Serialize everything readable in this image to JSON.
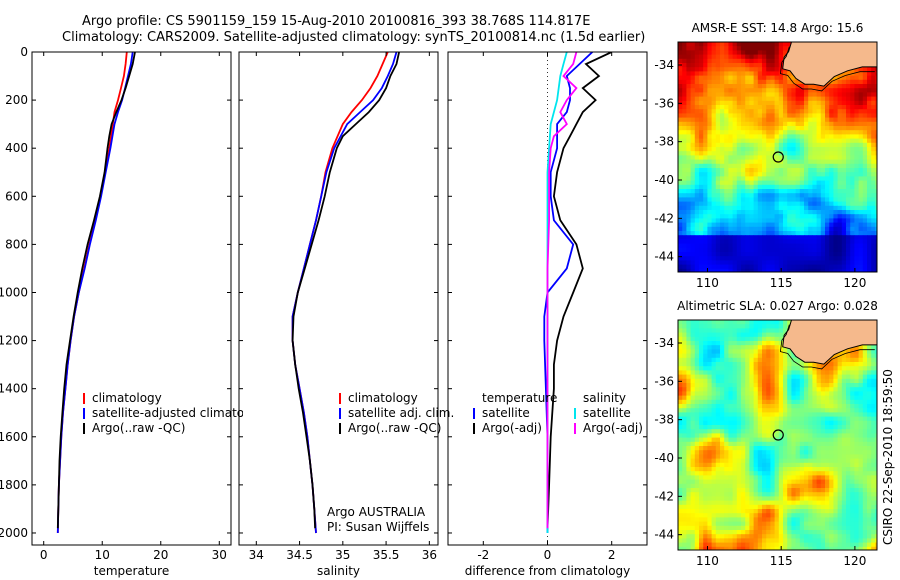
{
  "title_line1": "Argo profile: CS 5901159_159 15-Aug-2010 20100816_393 38.768S 114.817E",
  "title_line2": "Climatology: CARS2009. Satellite-adjusted climatology: synTS_20100814.nc (1.5d earlier)",
  "side_label": "CSIRO 22-Sep-2010 18:59:50",
  "colors": {
    "climatology": "#ff0000",
    "satellite": "#0000ff",
    "argo": "#000000",
    "sal_satellite": "#00e5ee",
    "sal_argo": "#ff00ff",
    "land": "#f5b98c",
    "marker": "#000000"
  },
  "chart_data": [
    {
      "type": "line",
      "xlabel": "temperature",
      "xlim": [
        -2,
        32
      ],
      "ylim": [
        0,
        2050
      ],
      "y_reversed": true,
      "xticks": [
        0,
        10,
        20,
        30
      ],
      "yticks": [
        0,
        200,
        400,
        600,
        800,
        1000,
        1200,
        1400,
        1600,
        1800,
        2000
      ],
      "legend": [
        "climatology",
        "satellite-adjusted climatology",
        "Argo(..raw -QC)"
      ],
      "series": [
        {
          "name": "climatology",
          "key": "climatology",
          "depth": [
            0,
            50,
            100,
            150,
            200,
            250,
            300,
            400,
            500,
            600,
            700,
            800,
            900,
            1000,
            1100,
            1200,
            1300,
            1400,
            1500,
            1600,
            1700,
            1800,
            1900,
            2000
          ],
          "values": [
            14.2,
            14.0,
            13.7,
            13.2,
            12.7,
            12.1,
            11.8,
            11.2,
            10.5,
            9.7,
            8.8,
            7.8,
            6.9,
            6.0,
            5.2,
            4.6,
            4.1,
            3.7,
            3.3,
            3.0,
            2.8,
            2.6,
            2.5,
            2.4
          ]
        },
        {
          "name": "satellite-adjusted climatology",
          "key": "satellite",
          "depth": [
            0,
            50,
            100,
            150,
            200,
            250,
            300,
            400,
            500,
            600,
            700,
            800,
            900,
            1000,
            1100,
            1200,
            1300,
            1400,
            1500,
            1600,
            1700,
            1800,
            1900,
            2000
          ],
          "values": [
            15.2,
            14.9,
            14.4,
            13.9,
            13.4,
            12.7,
            12.1,
            11.4,
            10.6,
            9.8,
            8.9,
            7.9,
            7.0,
            6.0,
            5.2,
            4.6,
            4.1,
            3.7,
            3.3,
            3.0,
            2.8,
            2.6,
            2.5,
            2.4
          ]
        },
        {
          "name": "Argo(..raw -QC)",
          "key": "argo",
          "depth": [
            0,
            50,
            100,
            150,
            200,
            250,
            300,
            350,
            400,
            500,
            600,
            700,
            800,
            900,
            1000,
            1100,
            1200,
            1300,
            1400,
            1500,
            1600,
            1700,
            1800,
            1900,
            1980
          ],
          "values": [
            15.6,
            15.2,
            14.6,
            14.0,
            13.3,
            12.4,
            11.6,
            11.2,
            10.9,
            10.4,
            9.6,
            8.6,
            7.5,
            6.6,
            5.8,
            5.1,
            4.5,
            3.9,
            3.5,
            3.2,
            2.9,
            2.7,
            2.6,
            2.5,
            2.4
          ]
        }
      ]
    },
    {
      "type": "line",
      "xlabel": "salinity",
      "xlim": [
        33.8,
        36.1
      ],
      "ylim": [
        0,
        2050
      ],
      "y_reversed": true,
      "xticks": [
        34,
        34.5,
        35,
        35.5,
        36
      ],
      "legend": [
        "climatology",
        "satellite adj. clim.",
        "Argo(..raw -QC)"
      ],
      "annotation": [
        "Argo AUSTRALIA",
        "PI: Susan Wijffels"
      ],
      "series": [
        {
          "name": "climatology",
          "key": "climatology",
          "depth": [
            0,
            50,
            100,
            150,
            200,
            250,
            300,
            400,
            500,
            600,
            700,
            800,
            900,
            1000,
            1100,
            1200,
            1300,
            1400,
            1500,
            1600,
            1700,
            1800,
            1900,
            2000
          ],
          "values": [
            35.52,
            35.46,
            35.4,
            35.32,
            35.22,
            35.1,
            35.0,
            34.88,
            34.8,
            34.75,
            34.69,
            34.62,
            34.55,
            34.48,
            34.42,
            34.42,
            34.45,
            34.5,
            34.55,
            34.59,
            34.62,
            34.65,
            34.67,
            34.69
          ]
        },
        {
          "name": "satellite adj. clim.",
          "key": "satellite",
          "depth": [
            0,
            50,
            100,
            150,
            200,
            250,
            300,
            400,
            500,
            600,
            700,
            800,
            900,
            1000,
            1100,
            1200,
            1300,
            1400,
            1500,
            1600,
            1700,
            1800,
            1900,
            2000
          ],
          "values": [
            35.62,
            35.58,
            35.52,
            35.45,
            35.35,
            35.2,
            35.05,
            34.9,
            34.81,
            34.75,
            34.69,
            34.62,
            34.55,
            34.48,
            34.42,
            34.42,
            34.45,
            34.5,
            34.55,
            34.59,
            34.62,
            34.65,
            34.67,
            34.69
          ]
        },
        {
          "name": "Argo(..raw -QC)",
          "key": "argo",
          "depth": [
            0,
            50,
            100,
            150,
            200,
            250,
            300,
            350,
            400,
            500,
            600,
            700,
            800,
            900,
            1000,
            1100,
            1200,
            1300,
            1400,
            1500,
            1600,
            1700,
            1800,
            1900,
            1980
          ],
          "values": [
            35.65,
            35.62,
            35.55,
            35.5,
            35.42,
            35.3,
            35.15,
            35.0,
            34.93,
            34.85,
            34.79,
            34.72,
            34.64,
            34.56,
            34.48,
            34.43,
            34.42,
            34.45,
            34.49,
            34.54,
            34.58,
            34.62,
            34.65,
            34.67,
            34.68
          ]
        }
      ]
    },
    {
      "type": "line",
      "xlabel": "difference from climatology",
      "xlim": [
        -3.1,
        3.1
      ],
      "ylim": [
        0,
        2050
      ],
      "y_reversed": true,
      "xticks": [
        -2,
        0,
        2
      ],
      "zero_line": "dotted",
      "legend_temperature": [
        "temperature",
        "satellite",
        "Argo(-adj)"
      ],
      "legend_salinity": [
        "salinity",
        "satellite",
        "Argo(-adj)"
      ],
      "series": [
        {
          "name": "temperature satellite",
          "key": "satellite",
          "depth": [
            0,
            50,
            100,
            150,
            200,
            250,
            300,
            400,
            500,
            600,
            700,
            800,
            900,
            1000,
            1100,
            1200,
            1400,
            1600,
            1800,
            2000
          ],
          "values": [
            1.4,
            1.0,
            0.6,
            0.7,
            0.7,
            0.6,
            0.3,
            0.3,
            0.1,
            0.1,
            0.2,
            0.8,
            0.6,
            0.0,
            -0.1,
            -0.1,
            -0.05,
            0.0,
            0.0,
            0.0
          ]
        },
        {
          "name": "temperature Argo(-adj)",
          "key": "argo",
          "depth": [
            0,
            50,
            100,
            150,
            200,
            250,
            300,
            350,
            400,
            500,
            600,
            700,
            800,
            900,
            1000,
            1100,
            1200,
            1300,
            1400,
            1600,
            1800,
            1980
          ],
          "values": [
            2.0,
            1.2,
            1.6,
            1.1,
            1.5,
            1.1,
            0.9,
            0.7,
            0.5,
            0.3,
            0.2,
            0.4,
            0.9,
            1.1,
            0.8,
            0.5,
            0.3,
            0.2,
            0.2,
            0.1,
            0.05,
            0.0
          ]
        },
        {
          "name": "salinity satellite",
          "key": "sal_satellite",
          "depth": [
            0,
            50,
            100,
            150,
            200,
            250,
            300,
            400,
            500,
            700,
            900,
            1100,
            1300,
            1500,
            1700,
            1900,
            2000
          ],
          "values": [
            0.6,
            0.5,
            0.4,
            0.35,
            0.3,
            0.2,
            0.1,
            0.05,
            0.0,
            0.0,
            0.0,
            0.0,
            0.0,
            0.0,
            0.0,
            0.0,
            0.0
          ]
        },
        {
          "name": "salinity Argo(-adj)",
          "key": "sal_argo",
          "depth": [
            0,
            50,
            100,
            150,
            200,
            250,
            300,
            350,
            400,
            500,
            700,
            900,
            1100,
            1300,
            1500,
            1700,
            1900,
            1980
          ],
          "values": [
            0.9,
            0.8,
            0.5,
            0.9,
            0.6,
            0.4,
            0.6,
            0.2,
            0.1,
            0.05,
            0.05,
            0.0,
            0.0,
            0.0,
            0.0,
            0.0,
            0.0,
            0.0
          ]
        }
      ]
    },
    {
      "type": "heatmap",
      "title": "AMSR-E SST: 14.8 Argo: 15.6",
      "xlim": [
        108,
        121.5
      ],
      "ylim": [
        -44.8,
        -32.8
      ],
      "xticks": [
        110,
        115,
        120
      ],
      "yticks": [
        -34,
        -36,
        -38,
        -40,
        -42,
        -44
      ],
      "marker": [
        114.8,
        -38.8
      ]
    },
    {
      "type": "heatmap",
      "title": "Altimetric SLA: 0.027 Argo: 0.028",
      "xlim": [
        108,
        121.5
      ],
      "ylim": [
        -44.8,
        -32.8
      ],
      "xticks": [
        110,
        115,
        120
      ],
      "yticks": [
        -34,
        -36,
        -38,
        -40,
        -42,
        -44
      ],
      "marker": [
        114.8,
        -38.8
      ]
    }
  ]
}
